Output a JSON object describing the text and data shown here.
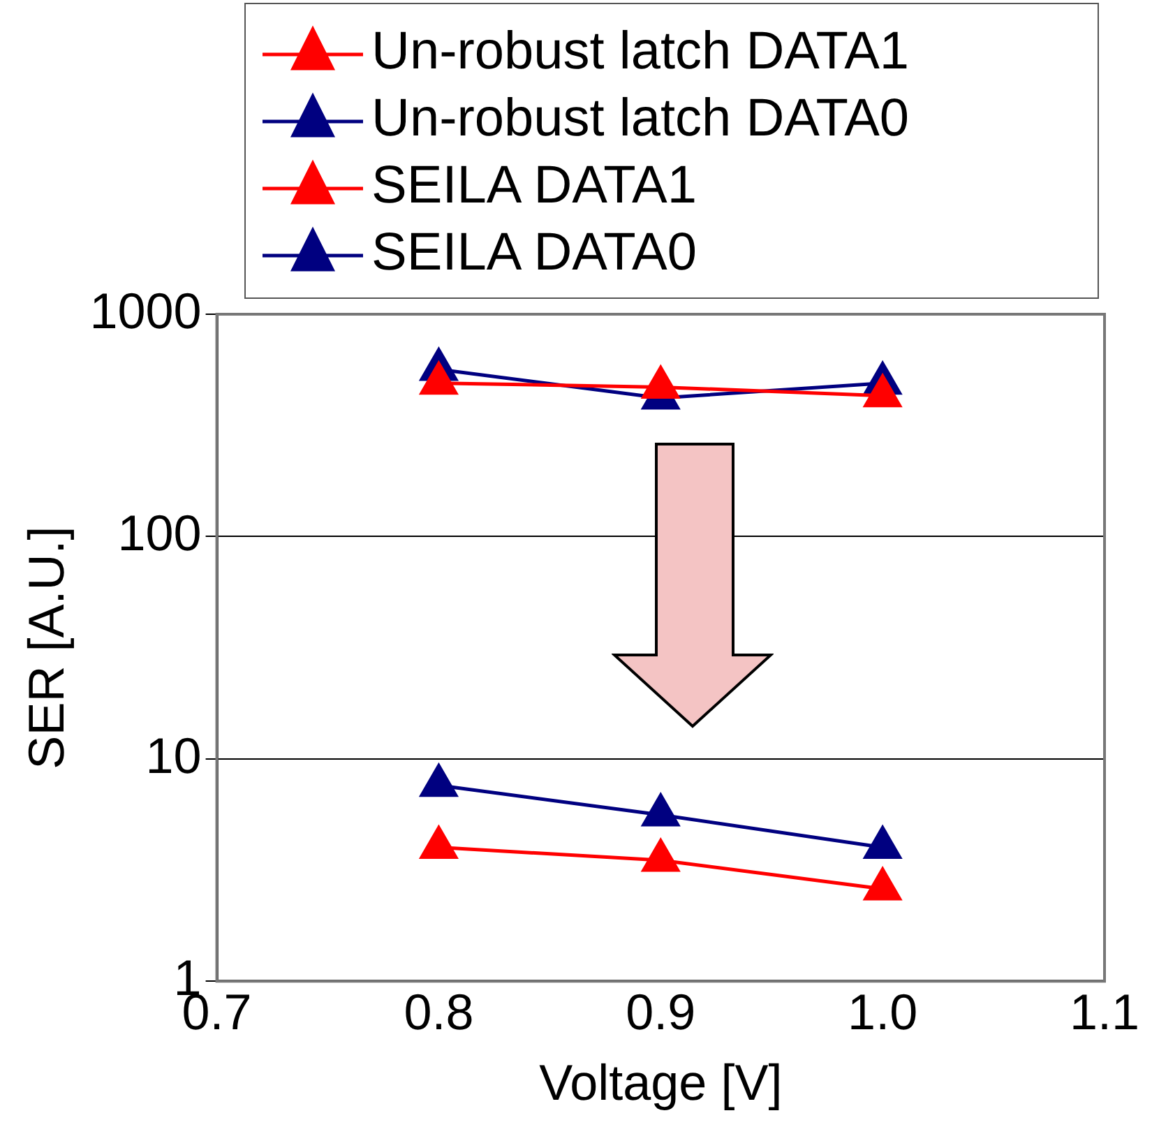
{
  "chart_data": {
    "type": "line",
    "xlabel": "Voltage [V]",
    "ylabel": "SER [A.U.]",
    "log": "y",
    "grid": "y",
    "legend": "top",
    "marker": "triangle",
    "xlim": [
      0.7,
      1.1
    ],
    "xticks": [
      0.7,
      0.8,
      0.9,
      {
        "value": 1.0,
        "label": "1.0"
      },
      1.1
    ],
    "ylim": [
      1,
      1000
    ],
    "yticks": [
      1,
      10,
      100,
      1000
    ],
    "series": [
      {
        "name": "Un-robust latch DATA1",
        "color": "#ff0000",
        "x": [
          0.8,
          0.9,
          1.0
        ],
        "values": [
          490,
          470,
          430
        ]
      },
      {
        "name": "Un-robust latch DATA0",
        "color": "#000080",
        "x": [
          0.8,
          0.9,
          1.0
        ],
        "values": [
          565,
          420,
          490
        ]
      },
      {
        "name": "SEILA DATA1",
        "color": "#ff0000",
        "x": [
          0.8,
          0.9,
          1.0
        ],
        "values": [
          4.0,
          3.5,
          2.6
        ]
      },
      {
        "name": "SEILA DATA0",
        "color": "#000080",
        "x": [
          0.8,
          0.9,
          1.0
        ],
        "values": [
          7.6,
          5.6,
          4.0
        ]
      }
    ]
  }
}
